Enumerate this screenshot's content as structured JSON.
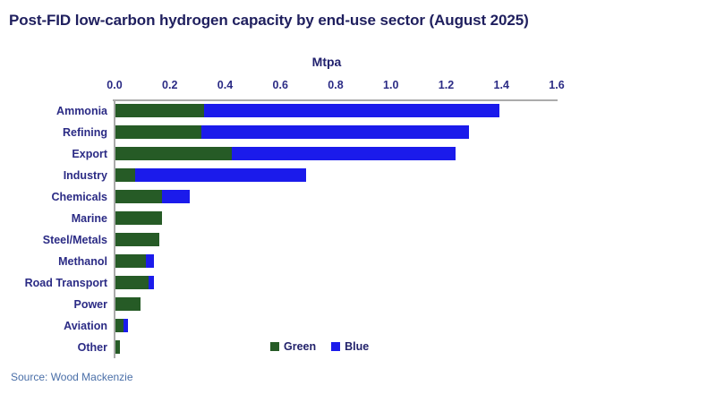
{
  "title": "Post-FID low-carbon hydrogen capacity by end-use sector (August 2025)",
  "source": "Source: Wood Mackenzie",
  "colors": {
    "green_series": "#265b26",
    "blue_series": "#1b1beb",
    "title_navy": "#1f1f5e",
    "label_navy": "#2b2b85",
    "axis_gray": "#ababab",
    "source_blue": "#4a6fa8"
  },
  "chart_data": {
    "type": "bar",
    "orientation": "horizontal",
    "title": "Post-FID low-carbon hydrogen capacity by end-use sector (August 2025)",
    "axis_title": "Mtpa",
    "xlim": [
      0,
      1.6
    ],
    "x_ticks": [
      "0.0",
      "0.2",
      "0.4",
      "0.6",
      "0.8",
      "1.0",
      "1.2",
      "1.4",
      "1.6"
    ],
    "grid": false,
    "legend_position": "bottom-center-inside",
    "categories": [
      "Ammonia",
      "Refining",
      "Export",
      "Industry",
      "Chemicals",
      "Marine",
      "Steel/Metals",
      "Methanol",
      "Road Transport",
      "Power",
      "Aviation",
      "Other"
    ],
    "series": [
      {
        "name": "Green",
        "color": "#265b26",
        "values": [
          0.32,
          0.31,
          0.42,
          0.07,
          0.17,
          0.17,
          0.16,
          0.11,
          0.12,
          0.09,
          0.03,
          0.015
        ]
      },
      {
        "name": "Blue",
        "color": "#1b1beb",
        "values": [
          1.07,
          0.97,
          0.81,
          0.62,
          0.1,
          0,
          0,
          0.03,
          0.02,
          0,
          0.015,
          0
        ]
      }
    ],
    "totals": [
      1.39,
      1.28,
      1.23,
      0.69,
      0.27,
      0.17,
      0.16,
      0.14,
      0.14,
      0.09,
      0.045,
      0.015
    ]
  }
}
